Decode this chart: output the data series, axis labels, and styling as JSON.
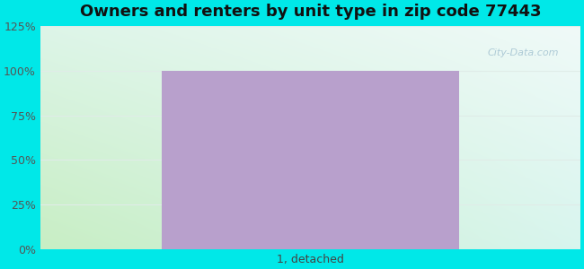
{
  "title": "Owners and renters by unit type in zip code 77443",
  "categories": [
    "1, detached"
  ],
  "values": [
    100
  ],
  "bar_color": "#b8a0cc",
  "ylim": [
    0,
    125
  ],
  "yticks": [
    0,
    25,
    50,
    75,
    100,
    125
  ],
  "ytick_labels": [
    "0%",
    "25%",
    "50%",
    "75%",
    "100%",
    "125%"
  ],
  "title_fontsize": 13,
  "tick_fontsize": 9,
  "xlabel_fontsize": 9,
  "bg_outer_color": "#00e8e8",
  "bg_bottom_left": "#c8eec4",
  "bg_top_right": "#f0faf8",
  "grid_color": "#e0ece8",
  "watermark": "City-Data.com",
  "bar_width": 0.55,
  "figsize": [
    6.5,
    3.0
  ],
  "dpi": 100
}
